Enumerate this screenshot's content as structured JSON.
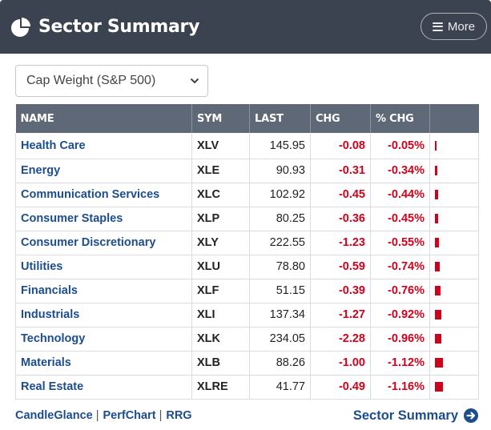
{
  "header": {
    "title": "Sector Summary",
    "more_label": "More",
    "icon": "pie-chart-icon"
  },
  "select": {
    "value": "Cap Weight (S&P 500)"
  },
  "table": {
    "columns": [
      "NAME",
      "SYM",
      "LAST",
      "CHG",
      "% CHG",
      ""
    ],
    "rows": [
      {
        "name": "Health Care",
        "sym": "XLV",
        "last": "145.95",
        "chg": "-0.08",
        "pct": "-0.05%",
        "pct_value": -0.05
      },
      {
        "name": "Energy",
        "sym": "XLE",
        "last": "90.93",
        "chg": "-0.31",
        "pct": "-0.34%",
        "pct_value": -0.34
      },
      {
        "name": "Communication Services",
        "sym": "XLC",
        "last": "102.92",
        "chg": "-0.45",
        "pct": "-0.44%",
        "pct_value": -0.44
      },
      {
        "name": "Consumer Staples",
        "sym": "XLP",
        "last": "80.25",
        "chg": "-0.36",
        "pct": "-0.45%",
        "pct_value": -0.45
      },
      {
        "name": "Consumer Discretionary",
        "sym": "XLY",
        "last": "222.55",
        "chg": "-1.23",
        "pct": "-0.55%",
        "pct_value": -0.55
      },
      {
        "name": "Utilities",
        "sym": "XLU",
        "last": "78.80",
        "chg": "-0.59",
        "pct": "-0.74%",
        "pct_value": -0.74
      },
      {
        "name": "Financials",
        "sym": "XLF",
        "last": "51.15",
        "chg": "-0.39",
        "pct": "-0.76%",
        "pct_value": -0.76
      },
      {
        "name": "Industrials",
        "sym": "XLI",
        "last": "137.34",
        "chg": "-1.27",
        "pct": "-0.92%",
        "pct_value": -0.92
      },
      {
        "name": "Technology",
        "sym": "XLK",
        "last": "234.05",
        "chg": "-2.28",
        "pct": "-0.96%",
        "pct_value": -0.96
      },
      {
        "name": "Materials",
        "sym": "XLB",
        "last": "88.26",
        "chg": "-1.00",
        "pct": "-1.12%",
        "pct_value": -1.12
      },
      {
        "name": "Real Estate",
        "sym": "XLRE",
        "last": "41.77",
        "chg": "-0.49",
        "pct": "-1.16%",
        "pct_value": -1.16
      }
    ]
  },
  "footer": {
    "links": [
      "CandleGlance",
      "PerfChart",
      "RRG"
    ],
    "separator": "|",
    "sector_summary_label": "Sector Summary",
    "arrow_icon": "circle-arrow-right-icon"
  },
  "colors": {
    "header_bg": "#3c4350",
    "table_header_bg": "#5f6877",
    "negative": "#d0021b",
    "link": "#1c4d8c"
  }
}
